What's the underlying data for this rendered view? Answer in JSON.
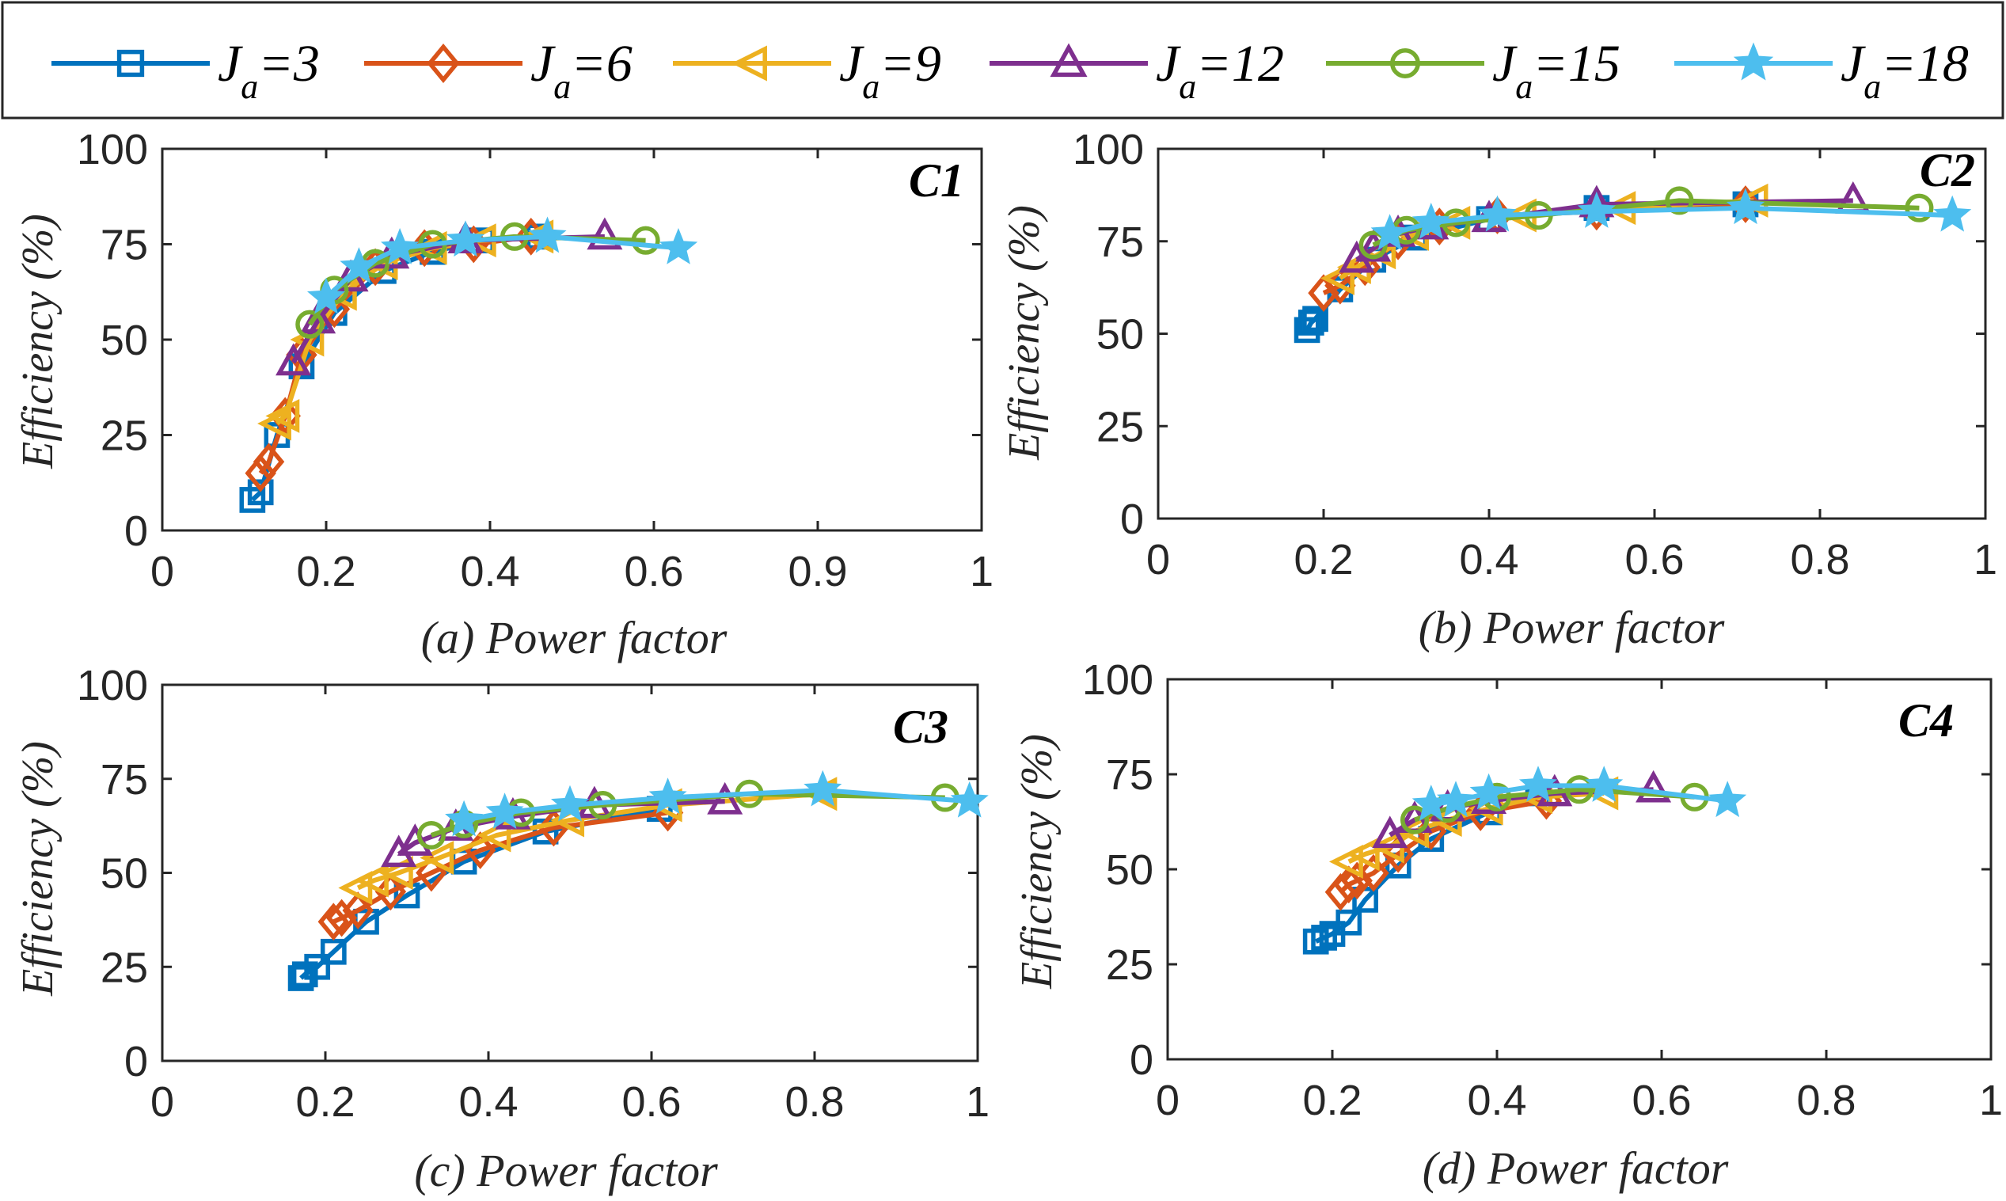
{
  "legend": [
    {
      "name": "J_a=3",
      "j": "J",
      "sub": "a",
      "eq": "=3",
      "color": "#0072BD",
      "marker": "square"
    },
    {
      "name": "J_a=6",
      "j": "J",
      "sub": "a",
      "eq": "=6",
      "color": "#D95319",
      "marker": "diamond"
    },
    {
      "name": "J_a=9",
      "j": "J",
      "sub": "a",
      "eq": "=9",
      "color": "#EDB120",
      "marker": "triangle-left"
    },
    {
      "name": "J_a=12",
      "j": "J",
      "sub": "a",
      "eq": "=12",
      "color": "#7E2F8E",
      "marker": "triangle-up"
    },
    {
      "name": "J_a=15",
      "j": "J",
      "sub": "a",
      "eq": "=15",
      "color": "#77AC30",
      "marker": "circle"
    },
    {
      "name": "J_a=18",
      "j": "J",
      "sub": "a",
      "eq": "=18",
      "color": "#4DBEEE",
      "marker": "star"
    }
  ],
  "chart_data": [
    {
      "type": "line",
      "panel": "C1",
      "title": "C1",
      "xlabel": "(a) Power factor",
      "ylabel": "Efficiency (%)",
      "xlim": [
        0,
        1
      ],
      "ylim": [
        0,
        100
      ],
      "xticks": [
        0,
        0.2,
        0.4,
        0.6,
        0.9,
        1
      ],
      "xtick_labels": [
        "0",
        "0.2",
        "0.4",
        "0.6",
        "0.9",
        "1"
      ],
      "yticks": [
        0,
        25,
        50,
        75,
        100
      ],
      "ytick_labels": [
        "0",
        "25",
        "50",
        "75",
        "100"
      ],
      "series": [
        {
          "name": "J_a=3",
          "x": [
            0.11,
            0.12,
            0.14,
            0.17,
            0.21,
            0.27,
            0.33,
            0.39,
            0.46
          ],
          "y": [
            8,
            10,
            25,
            43,
            57,
            68,
            73,
            76,
            77
          ]
        },
        {
          "name": "J_a=6",
          "x": [
            0.12,
            0.13,
            0.15,
            0.17,
            0.21,
            0.26,
            0.32,
            0.38,
            0.45
          ],
          "y": [
            15,
            18,
            30,
            46,
            58,
            69,
            74,
            75,
            77
          ]
        },
        {
          "name": "J_a=9",
          "x": [
            0.14,
            0.15,
            0.18,
            0.22,
            0.27,
            0.33,
            0.39,
            0.46
          ],
          "y": [
            28,
            30,
            50,
            62,
            70,
            74,
            76,
            77
          ]
        },
        {
          "name": "J_a=12",
          "x": [
            0.16,
            0.19,
            0.23,
            0.28,
            0.37,
            0.54
          ],
          "y": [
            44,
            55,
            66,
            72,
            76,
            77
          ]
        },
        {
          "name": "J_a=15",
          "x": [
            0.18,
            0.21,
            0.26,
            0.33,
            0.43,
            0.59
          ],
          "y": [
            54,
            63,
            70,
            75,
            77,
            76
          ]
        },
        {
          "name": "J_a=18",
          "x": [
            0.2,
            0.24,
            0.29,
            0.37,
            0.47,
            0.63
          ],
          "y": [
            61,
            69,
            74,
            76,
            77,
            74
          ]
        }
      ]
    },
    {
      "type": "line",
      "panel": "C2",
      "title": "C2",
      "xlabel": "(b) Power factor",
      "ylabel": "Efficiency (%)",
      "xlim": [
        0,
        1
      ],
      "ylim": [
        0,
        100
      ],
      "xticks": [
        0,
        0.2,
        0.4,
        0.6,
        0.8,
        1
      ],
      "xtick_labels": [
        "0",
        "0.2",
        "0.4",
        "0.6",
        "0.8",
        "1"
      ],
      "yticks": [
        0,
        25,
        50,
        75,
        100
      ],
      "ytick_labels": [
        "0",
        "25",
        "50",
        "75",
        "100"
      ],
      "series": [
        {
          "name": "J_a=3",
          "x": [
            0.18,
            0.185,
            0.19,
            0.22,
            0.26,
            0.31,
            0.4,
            0.53,
            0.71
          ],
          "y": [
            51,
            53,
            54,
            62,
            70,
            76,
            81,
            84,
            85
          ]
        },
        {
          "name": "J_a=6",
          "x": [
            0.2,
            0.22,
            0.25,
            0.29,
            0.34,
            0.41,
            0.53,
            0.71
          ],
          "y": [
            61,
            63,
            68,
            75,
            79,
            82,
            83,
            85
          ]
        },
        {
          "name": "J_a=9",
          "x": [
            0.22,
            0.24,
            0.27,
            0.31,
            0.36,
            0.44,
            0.56,
            0.72
          ],
          "y": [
            65,
            68,
            72,
            77,
            80,
            82,
            84,
            86
          ]
        },
        {
          "name": "J_a=12",
          "x": [
            0.24,
            0.26,
            0.29,
            0.33,
            0.4,
            0.53,
            0.84
          ],
          "y": [
            70,
            73,
            77,
            79,
            81,
            85,
            86
          ]
        },
        {
          "name": "J_a=15",
          "x": [
            0.26,
            0.3,
            0.36,
            0.46,
            0.63,
            0.92
          ],
          "y": [
            74,
            78,
            80,
            82,
            86,
            84
          ]
        },
        {
          "name": "J_a=18",
          "x": [
            0.28,
            0.33,
            0.41,
            0.53,
            0.71,
            0.96
          ],
          "y": [
            77,
            80,
            82,
            83,
            84,
            82
          ]
        }
      ]
    },
    {
      "type": "line",
      "panel": "C3",
      "title": "C3",
      "xlabel": "(c) Power factor",
      "ylabel": "Efficiency (%)",
      "xlim": [
        0,
        1
      ],
      "ylim": [
        0,
        100
      ],
      "xticks": [
        0,
        0.2,
        0.4,
        0.6,
        0.8,
        1
      ],
      "xtick_labels": [
        "0",
        "0.2",
        "0.4",
        "0.6",
        "0.8",
        "1"
      ],
      "yticks": [
        0,
        25,
        50,
        75,
        100
      ],
      "ytick_labels": [
        "0",
        "25",
        "50",
        "75",
        "100"
      ],
      "series": [
        {
          "name": "J_a=3",
          "x": [
            0.17,
            0.175,
            0.19,
            0.21,
            0.25,
            0.3,
            0.37,
            0.47,
            0.61
          ],
          "y": [
            22,
            23,
            25,
            29,
            37,
            44,
            53,
            61,
            67
          ]
        },
        {
          "name": "J_a=6",
          "x": [
            0.21,
            0.22,
            0.24,
            0.28,
            0.33,
            0.39,
            0.48,
            0.62
          ],
          "y": [
            37,
            38,
            40,
            45,
            50,
            56,
            62,
            66
          ]
        },
        {
          "name": "J_a=9",
          "x": [
            0.24,
            0.26,
            0.29,
            0.34,
            0.41,
            0.5,
            0.62,
            0.81
          ],
          "y": [
            46,
            48,
            50,
            54,
            60,
            64,
            68,
            71
          ]
        },
        {
          "name": "J_a=12",
          "x": [
            0.29,
            0.31,
            0.36,
            0.43,
            0.53,
            0.69
          ],
          "y": [
            55,
            58,
            62,
            65,
            68,
            69
          ]
        },
        {
          "name": "J_a=15",
          "x": [
            0.33,
            0.37,
            0.44,
            0.54,
            0.72,
            0.96
          ],
          "y": [
            60,
            63,
            66,
            68,
            71,
            70
          ]
        },
        {
          "name": "J_a=18",
          "x": [
            0.37,
            0.42,
            0.5,
            0.62,
            0.81,
            0.99
          ],
          "y": [
            64,
            66,
            68,
            70,
            72,
            69
          ]
        }
      ]
    },
    {
      "type": "line",
      "panel": "C4",
      "title": "C4",
      "xlabel": "(d) Power factor",
      "ylabel": "Efficiency (%)",
      "xlim": [
        0,
        1
      ],
      "ylim": [
        0,
        100
      ],
      "xticks": [
        0,
        0.2,
        0.4,
        0.6,
        0.8,
        1
      ],
      "xtick_labels": [
        "0",
        "0.2",
        "0.4",
        "0.6",
        "0.8",
        "1"
      ],
      "yticks": [
        0,
        25,
        50,
        75,
        100
      ],
      "ytick_labels": [
        "0",
        "25",
        "50",
        "75",
        "100"
      ],
      "series": [
        {
          "name": "J_a=3",
          "x": [
            0.18,
            0.19,
            0.2,
            0.22,
            0.24,
            0.28,
            0.32,
            0.39,
            0.45
          ],
          "y": [
            31,
            32,
            33,
            36,
            42,
            51,
            58,
            65,
            70
          ]
        },
        {
          "name": "J_a=6",
          "x": [
            0.21,
            0.22,
            0.23,
            0.25,
            0.28,
            0.32,
            0.38,
            0.46
          ],
          "y": [
            44,
            46,
            47,
            49,
            54,
            60,
            65,
            68
          ]
        },
        {
          "name": "J_a=9",
          "x": [
            0.22,
            0.24,
            0.27,
            0.3,
            0.34,
            0.39,
            0.45,
            0.53
          ],
          "y": [
            52,
            54,
            56,
            60,
            63,
            66,
            69,
            70
          ]
        },
        {
          "name": "J_a=12",
          "x": [
            0.27,
            0.3,
            0.34,
            0.39,
            0.47,
            0.59
          ],
          "y": [
            59,
            63,
            66,
            68,
            70,
            71
          ]
        },
        {
          "name": "J_a=15",
          "x": [
            0.3,
            0.34,
            0.4,
            0.5,
            0.64
          ],
          "y": [
            63,
            66,
            69,
            71,
            69
          ]
        },
        {
          "name": "J_a=18",
          "x": [
            0.32,
            0.35,
            0.39,
            0.45,
            0.53,
            0.68
          ],
          "y": [
            67,
            68,
            70,
            72,
            72,
            68
          ]
        }
      ]
    }
  ]
}
